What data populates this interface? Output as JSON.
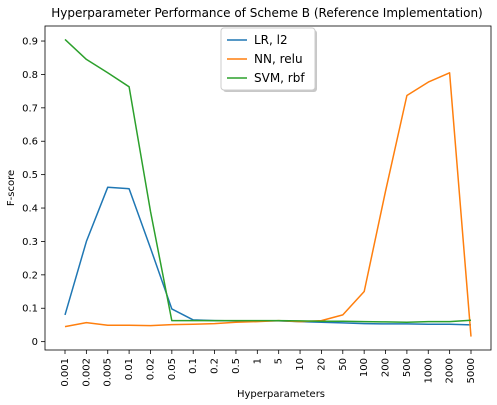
{
  "chart_data": {
    "type": "line",
    "title": "Hyperparameter Performance of Scheme B (Reference Implementation)",
    "xlabel": "Hyperparameters",
    "ylabel": "F-score",
    "categories": [
      "0.001",
      "0.002",
      "0.005",
      "0.01",
      "0.02",
      "0.05",
      "0.1",
      "0.2",
      "0.5",
      "1",
      "5",
      "10",
      "20",
      "50",
      "100",
      "200",
      "500",
      "1000",
      "2000",
      "5000"
    ],
    "yticks": [
      0.0,
      0.1,
      0.2,
      0.3,
      0.4,
      0.5,
      0.6,
      0.7,
      0.8,
      0.9
    ],
    "ytick_labels": [
      "0",
      "0.1",
      "0.2",
      "0.3",
      "0.4",
      "0.5",
      "0.6",
      "0.7",
      "0.8",
      "0.9"
    ],
    "ylim": [
      -0.025,
      0.945
    ],
    "legend_position": "upper-center",
    "grid": false,
    "series": [
      {
        "name": "LR, l2",
        "color": "#1f77b4",
        "values": [
          0.08,
          0.3,
          0.462,
          0.458,
          0.28,
          0.098,
          0.065,
          0.063,
          0.062,
          0.062,
          0.062,
          0.06,
          0.058,
          0.056,
          0.054,
          0.053,
          0.053,
          0.052,
          0.052,
          0.05
        ]
      },
      {
        "name": "NN, relu",
        "color": "#ff7f0e",
        "values": [
          0.045,
          0.057,
          0.049,
          0.049,
          0.048,
          0.051,
          0.052,
          0.054,
          0.058,
          0.06,
          0.063,
          0.06,
          0.063,
          0.08,
          0.15,
          0.45,
          0.737,
          0.777,
          0.805,
          0.015
        ]
      },
      {
        "name": "SVM, rbf",
        "color": "#2ca02c",
        "values": [
          0.905,
          0.845,
          0.805,
          0.763,
          0.39,
          0.063,
          0.063,
          0.063,
          0.063,
          0.063,
          0.063,
          0.062,
          0.061,
          0.061,
          0.06,
          0.059,
          0.058,
          0.06,
          0.06,
          0.064
        ]
      }
    ]
  }
}
